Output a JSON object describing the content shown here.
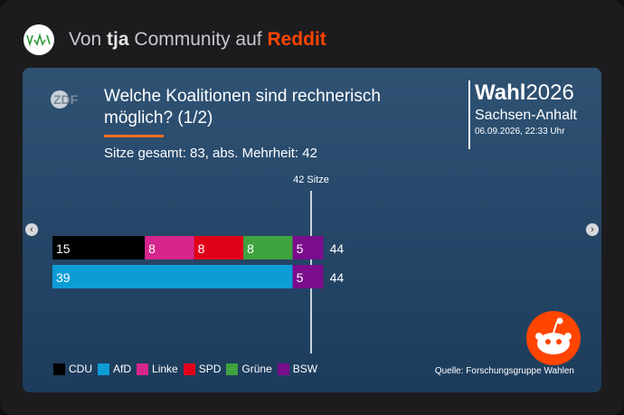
{
  "header": {
    "prefix": "Von ",
    "community": "tja",
    "middle": " Community auf ",
    "platform": "Reddit"
  },
  "zdf_logo": "ZDF",
  "title": "Welche Koalitionen sind rechnerisch möglich? (1/2)",
  "subtitle": "Sitze gesamt: 83, abs. Mehrheit: 42",
  "wahl": {
    "bold": "Wahl",
    "year": "2026",
    "region": "Sachsen-Anhalt",
    "date": "06.09.2026, 22:33 Uhr"
  },
  "source": "Quelle: Forschungsgruppe Wahlen",
  "nav": {
    "prev_icon": "chevron-left-icon",
    "next_icon": "chevron-right-icon"
  },
  "chart_data": {
    "type": "bar",
    "orientation": "horizontal-stacked",
    "threshold": {
      "value": 42,
      "label": "42 Sitze"
    },
    "parties": [
      {
        "name": "CDU",
        "color": "#000000"
      },
      {
        "name": "AfD",
        "color": "#0c9dd6"
      },
      {
        "name": "Linke",
        "color": "#d6258d"
      },
      {
        "name": "SPD",
        "color": "#e1001a"
      },
      {
        "name": "Grüne",
        "color": "#3fa33f"
      },
      {
        "name": "BSW",
        "color": "#7a0d8c"
      }
    ],
    "coalitions": [
      {
        "segments": [
          {
            "party": "CDU",
            "value": 15
          },
          {
            "party": "Linke",
            "value": 8
          },
          {
            "party": "SPD",
            "value": 8
          },
          {
            "party": "Grüne",
            "value": 8
          },
          {
            "party": "BSW",
            "value": 5
          }
        ],
        "total": 44
      },
      {
        "segments": [
          {
            "party": "AfD",
            "value": 39
          },
          {
            "party": "BSW",
            "value": 5
          }
        ],
        "total": 44
      }
    ]
  }
}
